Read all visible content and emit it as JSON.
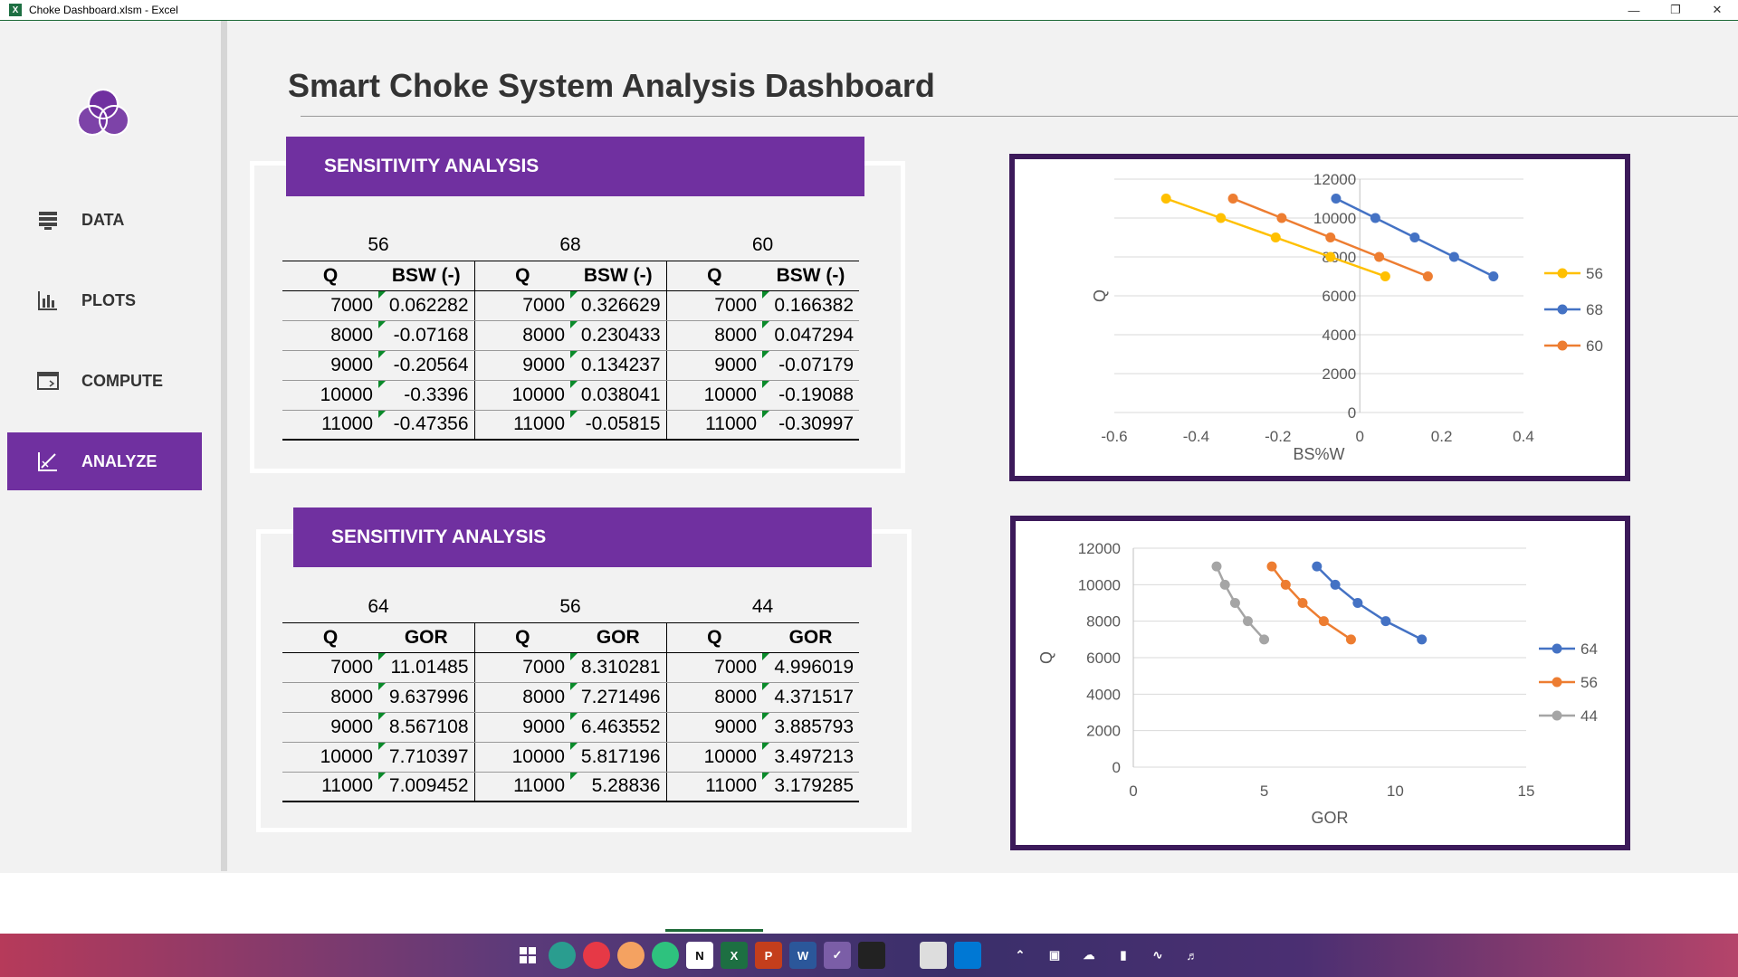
{
  "window": {
    "title": "Choke Dashboard.xlsm  -  Excel"
  },
  "sidebar": {
    "items": [
      {
        "label": "DATA"
      },
      {
        "label": "PLOTS"
      },
      {
        "label": "COMPUTE"
      },
      {
        "label": "ANALYZE",
        "active": true
      }
    ]
  },
  "page": {
    "title": "Smart Choke System Analysis Dashboard"
  },
  "table1": {
    "banner": "SENSITIVITY ANALYSIS",
    "groups": [
      "56",
      "68",
      "60"
    ],
    "col_q": "Q",
    "col_v": "BSW (-)",
    "rows": [
      [
        "7000",
        "0.062282",
        "7000",
        "0.326629",
        "7000",
        "0.166382"
      ],
      [
        "8000",
        "-0.07168",
        "8000",
        "0.230433",
        "8000",
        "0.047294"
      ],
      [
        "9000",
        "-0.20564",
        "9000",
        "0.134237",
        "9000",
        "-0.07179"
      ],
      [
        "10000",
        "-0.3396",
        "10000",
        "0.038041",
        "10000",
        "-0.19088"
      ],
      [
        "11000",
        "-0.47356",
        "11000",
        "-0.05815",
        "11000",
        "-0.30997"
      ]
    ]
  },
  "table2": {
    "banner": "SENSITIVITY ANALYSIS",
    "groups": [
      "64",
      "56",
      "44"
    ],
    "col_q": "Q",
    "col_v": "GOR",
    "rows": [
      [
        "7000",
        "11.01485",
        "7000",
        "8.310281",
        "7000",
        "4.996019"
      ],
      [
        "8000",
        "9.637996",
        "8000",
        "7.271496",
        "8000",
        "4.371517"
      ],
      [
        "9000",
        "8.567108",
        "9000",
        "6.463552",
        "9000",
        "3.885793"
      ],
      [
        "10000",
        "7.710397",
        "10000",
        "5.817196",
        "10000",
        "3.497213"
      ],
      [
        "11000",
        "7.009452",
        "11000",
        "5.28836",
        "11000",
        "3.179285"
      ]
    ]
  },
  "chart_data": [
    {
      "type": "line",
      "xlabel": "BS%W",
      "ylabel": "Q",
      "xlim": [
        -0.6,
        0.4
      ],
      "ylim": [
        0,
        12000
      ],
      "xticks": [
        "-0.6",
        "-0.4",
        "-0.2",
        "0",
        "0.2",
        "0.4"
      ],
      "yticks": [
        "0",
        "2000",
        "4000",
        "6000",
        "8000",
        "10000",
        "12000"
      ],
      "legend": "right",
      "series": [
        {
          "name": "56",
          "color": "#ffc000",
          "x": [
            0.062282,
            -0.07168,
            -0.20564,
            -0.3396,
            -0.47356
          ],
          "y": [
            7000,
            8000,
            9000,
            10000,
            11000
          ]
        },
        {
          "name": "68",
          "color": "#4472c4",
          "x": [
            0.326629,
            0.230433,
            0.134237,
            0.038041,
            -0.05815
          ],
          "y": [
            7000,
            8000,
            9000,
            10000,
            11000
          ]
        },
        {
          "name": "60",
          "color": "#ed7d31",
          "x": [
            0.166382,
            0.047294,
            -0.07179,
            -0.19088,
            -0.30997
          ],
          "y": [
            7000,
            8000,
            9000,
            10000,
            11000
          ]
        }
      ]
    },
    {
      "type": "line",
      "xlabel": "GOR",
      "ylabel": "Q",
      "xlim": [
        0,
        15
      ],
      "ylim": [
        0,
        12000
      ],
      "xticks": [
        "0",
        "5",
        "10",
        "15"
      ],
      "yticks": [
        "0",
        "2000",
        "4000",
        "6000",
        "8000",
        "10000",
        "12000"
      ],
      "legend": "right",
      "series": [
        {
          "name": "64",
          "color": "#4472c4",
          "x": [
            11.01485,
            9.637996,
            8.567108,
            7.710397,
            7.009452
          ],
          "y": [
            7000,
            8000,
            9000,
            10000,
            11000
          ]
        },
        {
          "name": "56",
          "color": "#ed7d31",
          "x": [
            8.310281,
            7.271496,
            6.463552,
            5.817196,
            5.28836
          ],
          "y": [
            7000,
            8000,
            9000,
            10000,
            11000
          ]
        },
        {
          "name": "44",
          "color": "#a5a5a5",
          "x": [
            4.996019,
            4.371517,
            3.885793,
            3.497213,
            3.179285
          ],
          "y": [
            7000,
            8000,
            9000,
            10000,
            11000
          ]
        }
      ]
    }
  ]
}
